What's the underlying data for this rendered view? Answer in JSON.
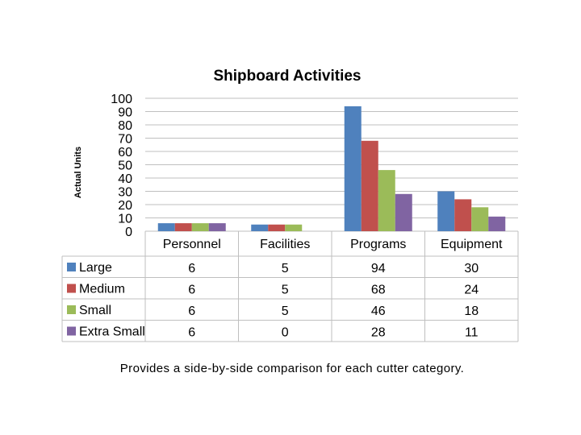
{
  "chart_data": {
    "type": "bar",
    "title": "Shipboard Activities",
    "ylabel": "Actual Units",
    "xlabel": "",
    "ylim": [
      0,
      100
    ],
    "yticks": [
      0,
      10,
      20,
      30,
      40,
      50,
      60,
      70,
      80,
      90,
      100
    ],
    "grid": true,
    "legend": "data-table-left",
    "categories": [
      "Personnel",
      "Facilities",
      "Programs",
      "Equipment"
    ],
    "series": [
      {
        "name": "Large",
        "color": "#4f81bd",
        "values": [
          6,
          5,
          94,
          30
        ]
      },
      {
        "name": "Medium",
        "color": "#c0504d",
        "values": [
          6,
          5,
          68,
          24
        ]
      },
      {
        "name": "Small",
        "color": "#9bbb59",
        "values": [
          6,
          5,
          46,
          18
        ]
      },
      {
        "name": "Extra Small",
        "color": "#8064a2",
        "values": [
          6,
          0,
          28,
          11
        ]
      }
    ],
    "data_table": {
      "rows": [
        [
          "6",
          "5",
          "94",
          "30"
        ],
        [
          "6",
          "5",
          "68",
          "24"
        ],
        [
          "6",
          "5",
          "46",
          "18"
        ],
        [
          "6",
          "0",
          "28",
          "11"
        ]
      ]
    }
  },
  "caption": "Provides a side-by-side comparison for each cutter category."
}
